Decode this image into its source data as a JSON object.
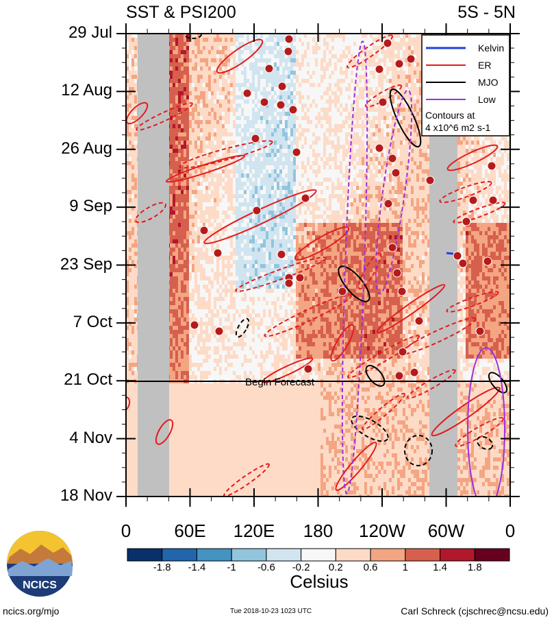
{
  "title_left": "SST & PSI200",
  "title_right": "5S - 5N",
  "chart_data": {
    "type": "heatmap",
    "x_tick_labels": [
      "0",
      "60E",
      "120E",
      "180",
      "120W",
      "60W",
      "0"
    ],
    "y_tick_labels": [
      "29 Jul",
      "12 Aug",
      "26 Aug",
      "9 Sep",
      "23 Sep",
      "7 Oct",
      "21 Oct",
      "4 Nov",
      "18 Nov"
    ],
    "forecast_label": "Begin Forecast",
    "forecast_date": "21 Oct",
    "colorbar": {
      "label": "Celsius",
      "tick_labels": [
        "-1.8",
        "-1.4",
        "-1",
        "-0.6",
        "-0.2",
        "0.2",
        "0.6",
        "1",
        "1.4",
        "1.8"
      ],
      "colors": [
        "#08306b",
        "#2166ac",
        "#4393c3",
        "#92c5de",
        "#d1e5f0",
        "#f7f7f7",
        "#fddbc7",
        "#f4a582",
        "#d6604d",
        "#b2182b",
        "#67001f"
      ]
    },
    "legend": {
      "entries": [
        {
          "name": "Kelvin",
          "color": "#1f3fdf"
        },
        {
          "name": "ER",
          "color": "#e41a1c"
        },
        {
          "name": "MJO",
          "color": "#000000"
        },
        {
          "name": "Low",
          "color": "#9b30e0"
        }
      ],
      "note_line1": "Contours at",
      "note_line2": "4 x10^6 m2 s-1"
    }
  },
  "footer": {
    "logo_text": "NCICS",
    "url": "ncics.org/mjo",
    "timestamp": "Tue 2018-10-23 1023 UTC",
    "author": "Carl Schreck (cjschrec@ncsu.edu)"
  }
}
